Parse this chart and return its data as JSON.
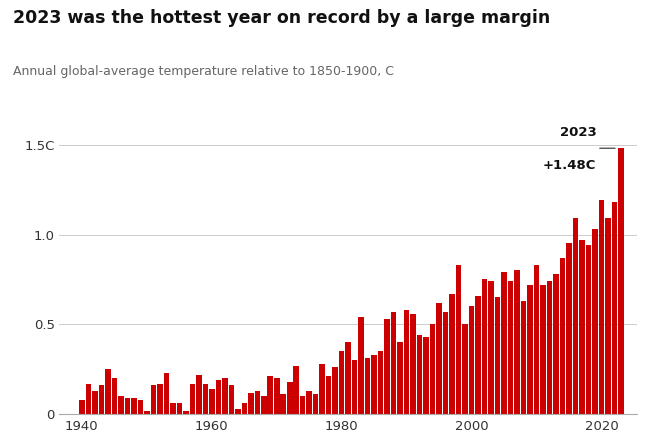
{
  "title": "2023 was the hottest year on record by a large margin",
  "subtitle": "Annual global-average temperature relative to 1850-1900, C",
  "bar_color": "#cc0000",
  "annotation_line1": "2023",
  "annotation_line2": "+1.48C",
  "ylim": [
    0,
    1.65
  ],
  "yticks": [
    0,
    0.5,
    1.0,
    1.5
  ],
  "ytick_labels": [
    "0",
    "0.5",
    "1.0",
    "1.5C"
  ],
  "xlim": [
    1936.5,
    2025.5
  ],
  "xticks": [
    1940,
    1960,
    1980,
    2000,
    2020
  ],
  "bg_color": "#ffffff",
  "grid_color": "#cccccc",
  "text_color": "#333333",
  "years": [
    1940,
    1941,
    1942,
    1943,
    1944,
    1945,
    1946,
    1947,
    1948,
    1949,
    1950,
    1951,
    1952,
    1953,
    1954,
    1955,
    1956,
    1957,
    1958,
    1959,
    1960,
    1961,
    1962,
    1963,
    1964,
    1965,
    1966,
    1967,
    1968,
    1969,
    1970,
    1971,
    1972,
    1973,
    1974,
    1975,
    1976,
    1977,
    1978,
    1979,
    1980,
    1981,
    1982,
    1983,
    1984,
    1985,
    1986,
    1987,
    1988,
    1989,
    1990,
    1991,
    1992,
    1993,
    1994,
    1995,
    1996,
    1997,
    1998,
    1999,
    2000,
    2001,
    2002,
    2003,
    2004,
    2005,
    2006,
    2007,
    2008,
    2009,
    2010,
    2011,
    2012,
    2013,
    2014,
    2015,
    2016,
    2017,
    2018,
    2019,
    2020,
    2021,
    2022,
    2023
  ],
  "values": [
    0.08,
    0.17,
    0.13,
    0.16,
    0.25,
    0.2,
    0.1,
    0.09,
    0.09,
    0.08,
    0.02,
    0.16,
    0.17,
    0.23,
    0.06,
    0.06,
    0.02,
    0.17,
    0.22,
    0.17,
    0.14,
    0.19,
    0.2,
    0.16,
    0.03,
    0.06,
    0.12,
    0.13,
    0.1,
    0.21,
    0.2,
    0.11,
    0.18,
    0.27,
    0.1,
    0.13,
    0.11,
    0.28,
    0.21,
    0.26,
    0.35,
    0.4,
    0.3,
    0.54,
    0.31,
    0.33,
    0.35,
    0.53,
    0.57,
    0.4,
    0.58,
    0.56,
    0.44,
    0.43,
    0.5,
    0.62,
    0.57,
    0.67,
    0.83,
    0.5,
    0.6,
    0.66,
    0.75,
    0.74,
    0.65,
    0.79,
    0.74,
    0.8,
    0.63,
    0.72,
    0.83,
    0.72,
    0.74,
    0.78,
    0.87,
    0.95,
    1.09,
    0.97,
    0.94,
    1.03,
    1.19,
    1.09,
    1.18,
    1.48
  ]
}
